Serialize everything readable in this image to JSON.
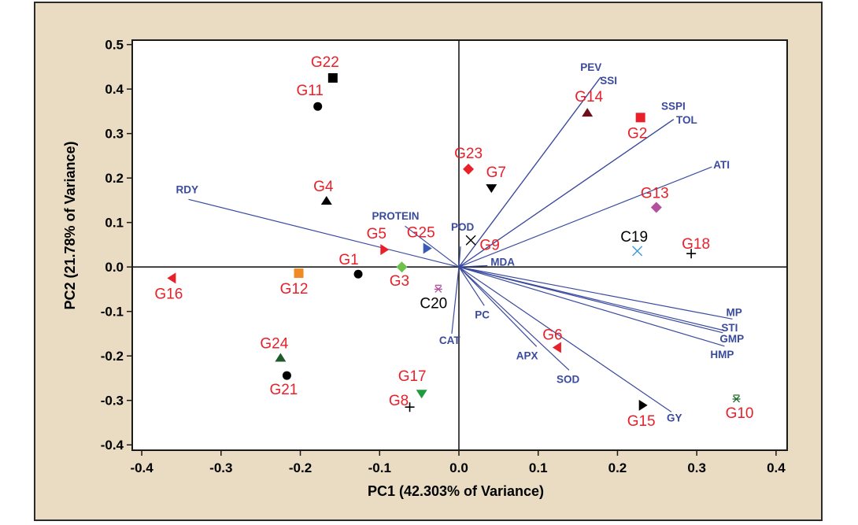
{
  "chart_data": {
    "type": "scatter",
    "subtype": "pca-biplot",
    "title": "",
    "xlabel": "PC1 (42.303% of Variance)",
    "ylabel": "PC2 (21.78% of Variance)",
    "xlim": [
      -0.412,
      0.414
    ],
    "ylim": [
      -0.412,
      0.51
    ],
    "xticks": [
      -0.4,
      -0.3,
      -0.2,
      -0.1,
      0.0,
      0.1,
      0.2,
      0.3,
      0.4
    ],
    "xtick_labels": [
      "-0.4",
      "-0.3",
      "-0.2",
      "-0.1",
      "0.0",
      "0.1",
      "0.2",
      "0.3",
      "0.4"
    ],
    "yticks": [
      -0.4,
      -0.3,
      -0.2,
      -0.1,
      0.0,
      0.1,
      0.2,
      0.3,
      0.4,
      0.5
    ],
    "ytick_labels": [
      "-0.4",
      "-0.3",
      "-0.2",
      "-0.1",
      "0.0",
      "0.1",
      "0.2",
      "0.3",
      "0.4",
      "0.5"
    ],
    "grid": false,
    "reference_lines": {
      "x": 0,
      "y": 0
    },
    "vector_color": "#3a4a9e",
    "observations": [
      {
        "label": "G1",
        "x": -0.127,
        "y": -0.016,
        "marker": "circle",
        "color": "#000000",
        "label_color": "#e8202a"
      },
      {
        "label": "G2",
        "x": 0.229,
        "y": 0.336,
        "marker": "square",
        "color": "#e8202a",
        "label_color": "#e8202a"
      },
      {
        "label": "G3",
        "x": -0.072,
        "y": 0.0,
        "marker": "diamond",
        "color": "#6cc24a",
        "label_color": "#e8202a"
      },
      {
        "label": "G4",
        "x": -0.167,
        "y": 0.149,
        "marker": "triangle-up",
        "color": "#000000",
        "label_color": "#e8202a"
      },
      {
        "label": "G5",
        "x": -0.094,
        "y": 0.039,
        "marker": "triangle-right",
        "color": "#e8202a",
        "label_color": "#e8202a"
      },
      {
        "label": "G6",
        "x": 0.124,
        "y": -0.181,
        "marker": "triangle-left",
        "color": "#e8202a",
        "label_color": "#e8202a"
      },
      {
        "label": "G7",
        "x": 0.041,
        "y": 0.177,
        "marker": "triangle-down",
        "color": "#000000",
        "label_color": "#e8202a"
      },
      {
        "label": "G8",
        "x": -0.062,
        "y": -0.315,
        "marker": "plus",
        "color": "#000000",
        "label_color": "#e8202a"
      },
      {
        "label": "G9",
        "x": 0.015,
        "y": 0.06,
        "marker": "x",
        "color": "#000000",
        "label_color": "#e8202a"
      },
      {
        "label": "G10",
        "x": 0.35,
        "y": -0.297,
        "marker": "asterisk",
        "color": "#1f6b2a",
        "label_color": "#e8202a"
      },
      {
        "label": "G11",
        "x": -0.178,
        "y": 0.361,
        "marker": "circle",
        "color": "#000000",
        "label_color": "#e8202a"
      },
      {
        "label": "G12",
        "x": -0.202,
        "y": -0.014,
        "marker": "square",
        "color": "#f08a24",
        "label_color": "#e8202a"
      },
      {
        "label": "G13",
        "x": 0.249,
        "y": 0.134,
        "marker": "diamond",
        "color": "#b3509e",
        "label_color": "#e8202a"
      },
      {
        "label": "G14",
        "x": 0.162,
        "y": 0.347,
        "marker": "triangle-up",
        "color": "#6b0f1a",
        "label_color": "#e8202a"
      },
      {
        "label": "G15",
        "x": 0.232,
        "y": -0.311,
        "marker": "triangle-right",
        "color": "#000000",
        "label_color": "#e8202a"
      },
      {
        "label": "G16",
        "x": -0.362,
        "y": -0.025,
        "marker": "triangle-left",
        "color": "#e8202a",
        "label_color": "#e8202a"
      },
      {
        "label": "G17",
        "x": -0.047,
        "y": -0.285,
        "marker": "triangle-down",
        "color": "#1f9a3c",
        "label_color": "#e8202a"
      },
      {
        "label": "G18",
        "x": 0.293,
        "y": 0.03,
        "marker": "plus",
        "color": "#000000",
        "label_color": "#e8202a"
      },
      {
        "label": "C19",
        "x": 0.225,
        "y": 0.036,
        "marker": "x",
        "color": "#3a9ad9",
        "label_color": "#000000"
      },
      {
        "label": "C20",
        "x": -0.026,
        "y": -0.05,
        "marker": "asterisk",
        "color": "#b3509e",
        "label_color": "#000000"
      },
      {
        "label": "G21",
        "x": -0.217,
        "y": -0.244,
        "marker": "circle",
        "color": "#000000",
        "label_color": "#e8202a"
      },
      {
        "label": "G22",
        "x": -0.159,
        "y": 0.425,
        "marker": "square",
        "color": "#000000",
        "label_color": "#e8202a"
      },
      {
        "label": "G23",
        "x": 0.012,
        "y": 0.22,
        "marker": "diamond",
        "color": "#e8202a",
        "label_color": "#e8202a"
      },
      {
        "label": "G24",
        "x": -0.225,
        "y": -0.204,
        "marker": "triangle-up",
        "color": "#1f5a2a",
        "label_color": "#e8202a"
      },
      {
        "label": "G25",
        "x": -0.04,
        "y": 0.042,
        "marker": "triangle-right",
        "color": "#3a5bb5",
        "label_color": "#e8202a"
      }
    ],
    "loadings": [
      {
        "label": "RDY",
        "x": -0.341,
        "y": 0.152
      },
      {
        "label": "PROTEIN",
        "x": -0.068,
        "y": 0.092
      },
      {
        "label": "POD",
        "x": 0.002,
        "y": 0.046
      },
      {
        "label": "MDA",
        "x": 0.036,
        "y": 0.003
      },
      {
        "label": "PEV",
        "x": 0.179,
        "y": 0.427
      },
      {
        "label": "SSI",
        "x": 0.178,
        "y": 0.425
      },
      {
        "label": "SSPI",
        "x": 0.271,
        "y": 0.332
      },
      {
        "label": "TOL",
        "x": 0.27,
        "y": 0.331
      },
      {
        "label": "ATI",
        "x": 0.319,
        "y": 0.225
      },
      {
        "label": "MP",
        "x": 0.345,
        "y": -0.117
      },
      {
        "label": "STI",
        "x": 0.335,
        "y": -0.143
      },
      {
        "label": "GMP",
        "x": 0.333,
        "y": -0.148
      },
      {
        "label": "HMP",
        "x": 0.335,
        "y": -0.178
      },
      {
        "label": "GY",
        "x": 0.268,
        "y": -0.326
      },
      {
        "label": "SOD",
        "x": 0.139,
        "y": -0.232
      },
      {
        "label": "APX",
        "x": 0.098,
        "y": -0.179
      },
      {
        "label": "PC",
        "x": 0.032,
        "y": -0.087
      },
      {
        "label": "CAT",
        "x": -0.009,
        "y": -0.15
      }
    ]
  }
}
